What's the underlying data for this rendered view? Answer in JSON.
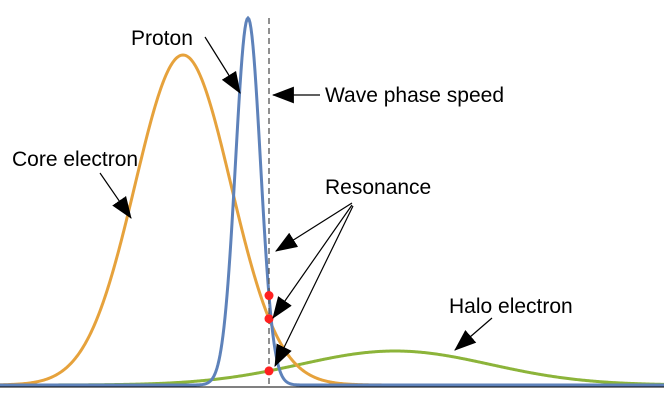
{
  "labels": {
    "proton": "Proton",
    "wave_phase_speed": "Wave phase speed",
    "core_electron": "Core electron",
    "resonance": "Resonance",
    "halo_electron": "Halo electron"
  },
  "colors": {
    "core_electron": "#E6A23C",
    "proton": "#5E82BA",
    "halo_electron": "#8CB43A",
    "resonance_point": "#FF2020",
    "axis": "#000000",
    "phase_speed_line": "#555555"
  },
  "curves": {
    "core_electron": {
      "peak_x": 183,
      "sigma": 48,
      "amplitude": 330
    },
    "proton": {
      "peak_x": 248,
      "sigma": 12.5,
      "amplitude": 367
    },
    "halo_electron": {
      "peak_x": 395,
      "sigma": 95,
      "amplitude": 34
    }
  },
  "wave_phase_speed_x": 269
}
